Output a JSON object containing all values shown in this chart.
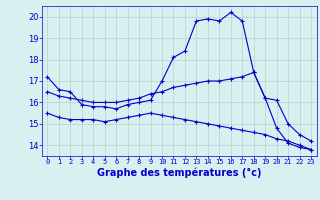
{
  "xlabel": "Graphe des températures (°c)",
  "x": [
    0,
    1,
    2,
    3,
    4,
    5,
    6,
    7,
    8,
    9,
    10,
    11,
    12,
    13,
    14,
    15,
    16,
    17,
    18,
    19,
    20,
    21,
    22,
    23
  ],
  "line1": [
    17.2,
    16.6,
    16.5,
    15.9,
    15.8,
    15.8,
    15.7,
    15.9,
    16.0,
    16.1,
    17.0,
    18.1,
    18.4,
    19.8,
    19.9,
    19.8,
    20.2,
    19.8,
    17.4,
    16.2,
    14.8,
    14.1,
    13.9,
    13.8
  ],
  "line2": [
    16.5,
    16.3,
    16.2,
    16.1,
    16.0,
    16.0,
    16.0,
    16.1,
    16.2,
    16.4,
    16.5,
    16.7,
    16.8,
    16.9,
    17.0,
    17.0,
    17.1,
    17.2,
    17.4,
    16.2,
    16.1,
    15.0,
    14.5,
    14.2
  ],
  "line3": [
    15.5,
    15.3,
    15.2,
    15.2,
    15.2,
    15.1,
    15.2,
    15.3,
    15.4,
    15.5,
    15.4,
    15.3,
    15.2,
    15.1,
    15.0,
    14.9,
    14.8,
    14.7,
    14.6,
    14.5,
    14.3,
    14.2,
    14.0,
    13.8
  ],
  "line_color": "#0000cc",
  "bg_color": "#d8f0f0",
  "grid_color": "#b8d0d0",
  "ylim": [
    13.5,
    20.5
  ],
  "yticks": [
    14,
    15,
    16,
    17,
    18,
    19,
    20
  ],
  "xticks": [
    0,
    1,
    2,
    3,
    4,
    5,
    6,
    7,
    8,
    9,
    10,
    11,
    12,
    13,
    14,
    15,
    16,
    17,
    18,
    19,
    20,
    21,
    22,
    23
  ],
  "xlim": [
    -0.5,
    23.5
  ],
  "marker": "+",
  "markersize": 3,
  "linewidth": 0.8,
  "xlabel_fontsize": 7,
  "tick_fontsize": 5,
  "ytick_fontsize": 6
}
